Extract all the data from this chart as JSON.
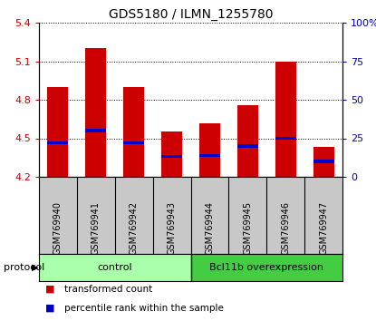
{
  "title": "GDS5180 / ILMN_1255780",
  "samples": [
    "GSM769940",
    "GSM769941",
    "GSM769942",
    "GSM769943",
    "GSM769944",
    "GSM769945",
    "GSM769946",
    "GSM769947"
  ],
  "transformed_count": [
    4.9,
    5.2,
    4.9,
    4.55,
    4.62,
    4.76,
    5.1,
    4.43
  ],
  "percentile_rank": [
    22,
    30,
    22,
    13,
    14,
    20,
    25,
    10
  ],
  "y_min": 4.2,
  "y_max": 5.4,
  "y_ticks": [
    4.2,
    4.5,
    4.8,
    5.1,
    5.4
  ],
  "right_y_ticks": [
    0,
    25,
    50,
    75,
    100
  ],
  "right_y_labels": [
    "0",
    "25",
    "50",
    "75",
    "100%"
  ],
  "control_color": "#AAFFAA",
  "bcl_color": "#44CC44",
  "bar_color_red": "#CC0000",
  "bar_color_blue": "#0000CC",
  "bar_width": 0.55,
  "tick_label_color_left": "#CC0000",
  "tick_label_color_right": "#0000CC",
  "protocol_label": "protocol",
  "legend_items": [
    "transformed count",
    "percentile rank within the sample"
  ],
  "percentile_bar_height": 0.022,
  "control_label": "control",
  "bcl_label": "Bcl11b overexpression",
  "n_control": 4,
  "n_bcl": 4
}
